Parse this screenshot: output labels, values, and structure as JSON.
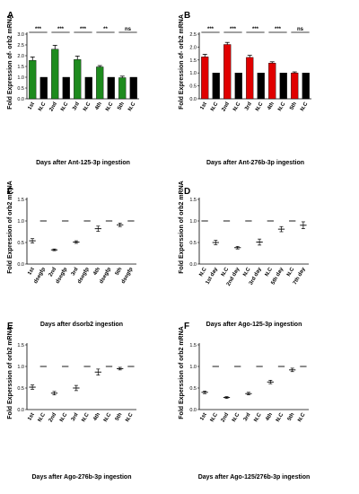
{
  "chart_data": [
    {
      "panel": "A",
      "type": "bar",
      "ylabel": "Fold Expression of- orb2 mRNA",
      "xlabel": "Days after Ant-125-3p ingestion",
      "yticks": [
        "0.0",
        "0.5",
        "1.0",
        "1.5",
        "2.0",
        "2.5",
        "3.0"
      ],
      "ylim": [
        0,
        3.0
      ],
      "categories": [
        "1st",
        "N.C",
        "2nd",
        "N.C",
        "3rd",
        "N.C",
        "4th",
        "N.C",
        "5th",
        "N.C"
      ],
      "values": [
        1.78,
        1.0,
        2.3,
        1.0,
        1.82,
        1.0,
        1.48,
        1.0,
        0.98,
        1.0
      ],
      "errors": [
        0.16,
        0,
        0.18,
        0,
        0.16,
        0,
        0.06,
        0,
        0.07,
        0
      ],
      "colors": [
        "#1e8b1e",
        "#000000",
        "#1e8b1e",
        "#000000",
        "#1e8b1e",
        "#000000",
        "#1e8b1e",
        "#000000",
        "#1e8b1e",
        "#000000"
      ],
      "significance": [
        "***",
        "***",
        "***",
        "**",
        "ns"
      ]
    },
    {
      "panel": "B",
      "type": "bar",
      "ylabel": "Fold Expression of- orb2 mRNA",
      "xlabel": "Days after Ant-276b-3p ingestion",
      "yticks": [
        "0.0",
        "0.5",
        "1.0",
        "1.5",
        "2.0",
        "2.5"
      ],
      "ylim": [
        0,
        2.5
      ],
      "categories": [
        "1st",
        "N.C",
        "2nd",
        "N.C",
        "3rd",
        "N.C",
        "4th",
        "N.C",
        "5th",
        "N.C"
      ],
      "values": [
        1.62,
        1.0,
        2.1,
        1.0,
        1.6,
        1.0,
        1.38,
        1.0,
        1.0,
        1.0
      ],
      "errors": [
        0.1,
        0,
        0.08,
        0,
        0.08,
        0,
        0.05,
        0,
        0.04,
        0
      ],
      "colors": [
        "#e00000",
        "#000000",
        "#e00000",
        "#000000",
        "#e00000",
        "#000000",
        "#e00000",
        "#000000",
        "#e00000",
        "#000000"
      ],
      "significance": [
        "***",
        "***",
        "***",
        "***",
        "ns"
      ]
    },
    {
      "panel": "C",
      "type": "scatter",
      "ylabel": "Fold Expression of orb2 mRNA",
      "xlabel": "Days after dsorb2 ingestion",
      "yticks": [
        "0.0",
        "0.5",
        "1.0",
        "1.5"
      ],
      "ylim": [
        0,
        1.5
      ],
      "categories": [
        "1st",
        "dsegfp",
        "2nd",
        "dsegfp",
        "3rd",
        "dsegfp",
        "4th",
        "dsegfp",
        "5th",
        "dsegfp"
      ],
      "values": [
        0.54,
        1.0,
        0.33,
        1.0,
        0.51,
        1.0,
        0.82,
        1.0,
        0.91,
        1.0
      ],
      "errors": [
        0.05,
        0,
        0.02,
        0,
        0.03,
        0,
        0.06,
        0,
        0.04,
        0
      ]
    },
    {
      "panel": "D",
      "type": "scatter",
      "ylabel": "Fold Experssion of orb2 mRNA",
      "xlabel": "Days after Ago-125-3p ingestion",
      "yticks": [
        "0.0",
        "0.5",
        "1.0",
        "1.5"
      ],
      "ylim": [
        0,
        1.5
      ],
      "categories": [
        "N.C",
        "1st day",
        "N.C",
        "2nd day",
        "N.C",
        "3rd day",
        "N.C",
        "5th day",
        "N.C",
        "7th day"
      ],
      "values": [
        1.0,
        0.5,
        1.0,
        0.38,
        1.0,
        0.51,
        1.0,
        0.81,
        1.0,
        0.9
      ],
      "errors": [
        0,
        0.05,
        0,
        0.03,
        0,
        0.07,
        0,
        0.06,
        0,
        0.08
      ]
    },
    {
      "panel": "E",
      "type": "scatter",
      "ylabel": "Fold Experssion of orb2 mRNA",
      "xlabel": "Days after Ago-276b-3p ingestion",
      "yticks": [
        "0.0",
        "0.5",
        "1.0",
        "1.5"
      ],
      "ylim": [
        0,
        1.5
      ],
      "categories": [
        "1st",
        "N.C",
        "2nd",
        "N.C",
        "3rd",
        "N.C",
        "4th",
        "N.C",
        "5th",
        "N.C"
      ],
      "values": [
        0.52,
        1.0,
        0.38,
        1.0,
        0.5,
        1.0,
        0.87,
        1.0,
        0.95,
        1.0
      ],
      "errors": [
        0.05,
        0,
        0.04,
        0,
        0.06,
        0,
        0.07,
        0,
        0.03,
        0
      ]
    },
    {
      "panel": "F",
      "type": "scatter",
      "ylabel": "Fold Experssion of orb2 mRNA",
      "xlabel": "Days after Ago-125/276b-3p ingestion",
      "yticks": [
        "0.0",
        "0.5",
        "1.0",
        "1.5"
      ],
      "ylim": [
        0,
        1.5
      ],
      "categories": [
        "1st",
        "N.C",
        "2nd",
        "N.C",
        "3rd",
        "N.C",
        "4th",
        "N.C",
        "5th",
        "N.C"
      ],
      "values": [
        0.4,
        1.0,
        0.28,
        1.0,
        0.37,
        1.0,
        0.64,
        1.0,
        0.92,
        1.0
      ],
      "errors": [
        0.03,
        0,
        0.02,
        0,
        0.03,
        0,
        0.04,
        0,
        0.04,
        0
      ]
    }
  ]
}
